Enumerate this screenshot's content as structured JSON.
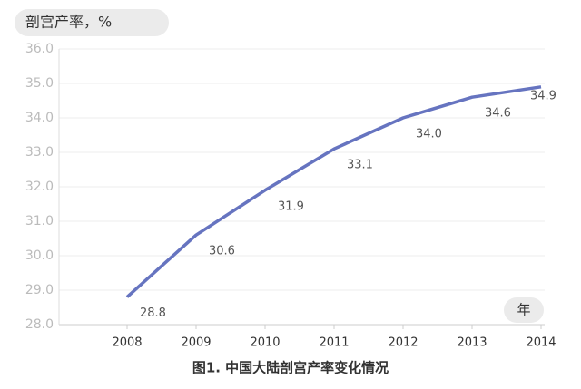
{
  "chart_data": {
    "type": "line",
    "title": "剖宫产率，%",
    "x_label": "年",
    "caption": "图1. 中国大陆剖宫产率变化情况",
    "categories": [
      "2008",
      "2009",
      "2010",
      "2011",
      "2012",
      "2013",
      "2014"
    ],
    "series": [
      {
        "name": "剖宫产率",
        "color": "#6674c0",
        "values": [
          28.8,
          30.6,
          31.9,
          33.1,
          34.0,
          34.6,
          34.9
        ],
        "value_labels": [
          "28.8",
          "30.6",
          "31.9",
          "33.1",
          "34.0",
          "34.6",
          "34.9"
        ]
      }
    ],
    "ylim": [
      28,
      36
    ],
    "yticks": [
      {
        "value": 28,
        "label": "28.0"
      },
      {
        "value": 29,
        "label": "29.0"
      },
      {
        "value": 30,
        "label": "30.0"
      },
      {
        "value": 31,
        "label": "31.0"
      },
      {
        "value": 32,
        "label": "32.0"
      },
      {
        "value": 33,
        "label": "33.0"
      },
      {
        "value": 34,
        "label": "34.0"
      },
      {
        "value": 35,
        "label": "35.0"
      },
      {
        "value": 36,
        "label": "36.0"
      }
    ],
    "grid": true
  }
}
